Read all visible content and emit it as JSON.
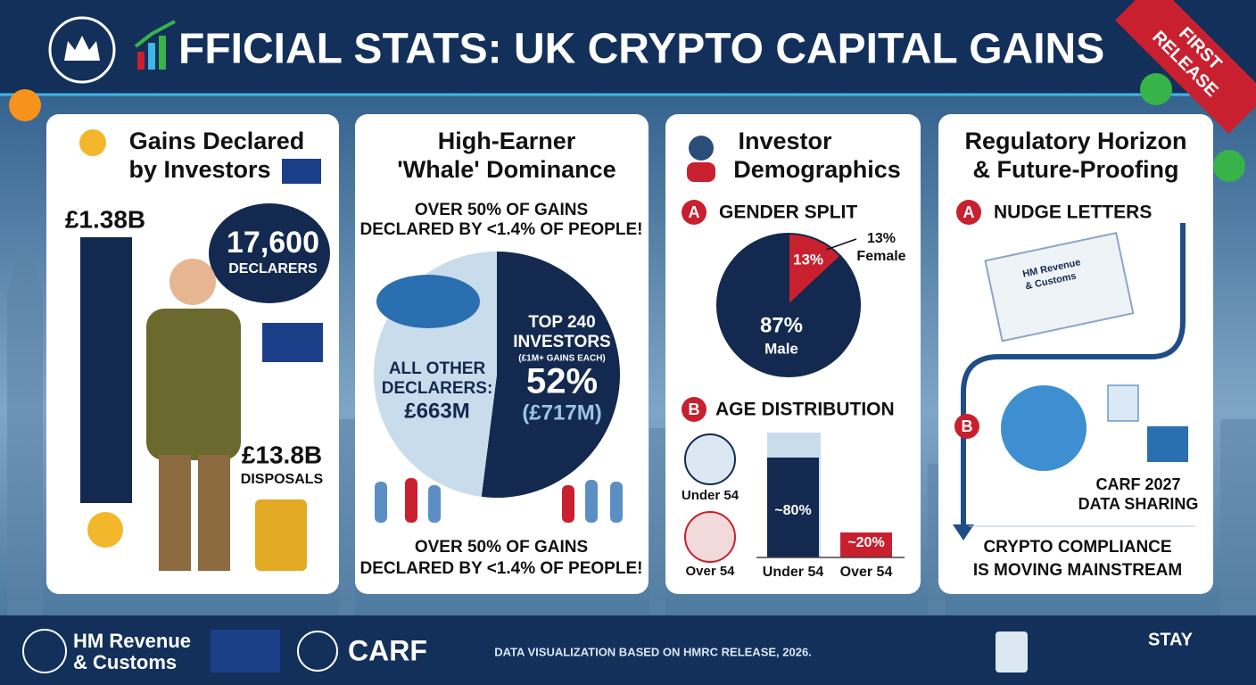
{
  "header": {
    "title": "FFICIAL STATS: UK CRYPTO CAPITAL GAINS",
    "ribbon": [
      "FIRST",
      "RELEASE"
    ]
  },
  "panel_gains": {
    "title": [
      "Gains Declared",
      "by Investors"
    ],
    "gains": "£1.38B",
    "declarers_count": "17,600",
    "declarers_label": "DECLARERS",
    "disposals": "£13.8B",
    "disposals_label": "DISPOSALS"
  },
  "panel_whale": {
    "title": [
      "High-Earner",
      "'Whale' Dominance"
    ],
    "headline": [
      "OVER 50% OF GAINS",
      "DECLARED BY <1.4% OF PEOPLE!"
    ],
    "others": {
      "label": [
        "ALL OTHER",
        "DECLARERS:"
      ],
      "amount": "£663M",
      "value": 48
    },
    "top": {
      "label": [
        "TOP 240",
        "INVESTORS"
      ],
      "note": "(£1M+ GAINS EACH)",
      "value": 52,
      "value_label": "52%",
      "amount": "(£717M)"
    },
    "footer": [
      "OVER 50% OF GAINS",
      "DECLARED BY <1.4% OF PEOPLE!"
    ]
  },
  "panel_demographics": {
    "title": [
      "Investor",
      "Demographics"
    ],
    "gender": {
      "badge": "A",
      "heading": "GENDER SPLIT",
      "categories": [
        "Male",
        "Female"
      ],
      "values": [
        87,
        13
      ],
      "value_labels": [
        "87%",
        "13%"
      ],
      "colors": [
        "#13294f",
        "#c8202f"
      ]
    },
    "age": {
      "badge": "B",
      "heading": "AGE DISTRIBUTION",
      "icon_labels": [
        "Under 54",
        "Over 54"
      ],
      "categories": [
        "Under 54",
        "Over 54"
      ],
      "values": [
        80,
        20
      ],
      "value_labels": [
        "~80%",
        "~20%"
      ],
      "colors": [
        "#13294f",
        "#c8202f"
      ],
      "ylim": [
        0,
        100
      ]
    }
  },
  "panel_regulatory": {
    "title": [
      "Regulatory Horizon",
      "& Future-Proofing"
    ],
    "step_a": {
      "badge": "A",
      "heading": "NUDGE LETTERS",
      "letter": [
        "HM Revenue",
        "& Customs"
      ]
    },
    "step_b": {
      "badge": "B",
      "caption": [
        "CARF 2027",
        "DATA SHARING"
      ]
    },
    "conclusion": [
      "CRYPTO COMPLIANCE",
      "IS MOVING MAINSTREAM"
    ]
  },
  "footer": {
    "hmrc": [
      "HM Revenue",
      "& Customs"
    ],
    "carf": "CARF",
    "source": "DATA VISUALIZATION BASED ON HMRC RELEASE, 2026.",
    "cta": "STAY"
  }
}
